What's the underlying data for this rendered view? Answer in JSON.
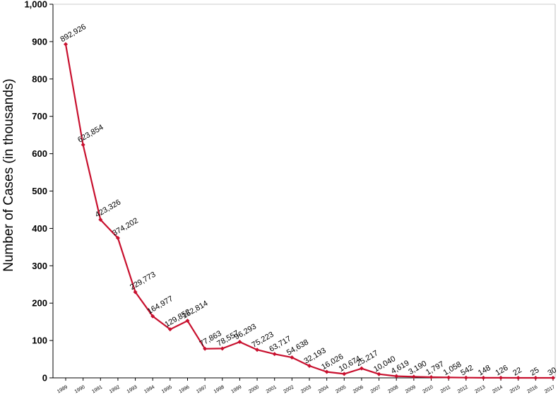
{
  "chart_data": {
    "type": "line",
    "title": "",
    "xlabel": "",
    "ylabel": "Number of Cases (in thousands)",
    "ylim": [
      0,
      1000
    ],
    "yticks": [
      "0",
      "100",
      "200",
      "300",
      "400",
      "500",
      "600",
      "700",
      "800",
      "900",
      "1,000"
    ],
    "grid": false,
    "legend": "none",
    "line_color": "#c8102e",
    "categories": [
      "1989",
      "1990",
      "1991",
      "1992",
      "1993",
      "1994",
      "1995",
      "1996",
      "1997",
      "1998",
      "1999",
      "2000",
      "2001",
      "2002",
      "2003",
      "2004",
      "2005",
      "2006",
      "2007",
      "2008",
      "2009",
      "2010",
      "2011",
      "2012",
      "2013",
      "2014",
      "2015",
      "2016",
      "2017"
    ],
    "values": [
      892.926,
      623.854,
      423.326,
      374.202,
      229.773,
      164.977,
      129.852,
      152.814,
      77.863,
      78.557,
      96.293,
      75.223,
      63.717,
      54.638,
      32.193,
      16.026,
      10.674,
      25.217,
      10.04,
      4.619,
      3.19,
      1.797,
      1.058,
      0.542,
      0.148,
      0.126,
      0.022,
      0.025,
      0.03
    ],
    "data_labels": [
      "892,926",
      "623,854",
      "423,326",
      "374,202",
      "229,773",
      "164,977",
      "129,852",
      "152,814",
      "77,863",
      "78,557",
      "96,293",
      "75,223",
      "63,717",
      "54,638",
      "32,193",
      "16,026",
      "10,674",
      "25,217",
      "10,040",
      "4,619",
      "3,190",
      "1,797",
      "1,058",
      "542",
      "148",
      "126",
      "22",
      "25",
      "30"
    ]
  }
}
